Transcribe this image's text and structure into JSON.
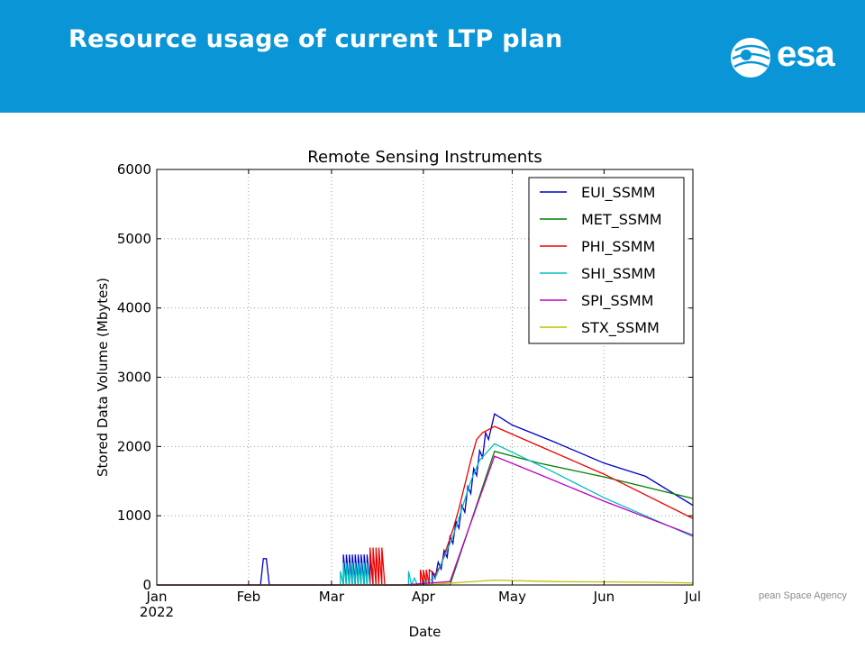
{
  "header": {
    "title": "Resource usage of current LTP plan",
    "logo_text": "esa",
    "brand_color": "#0a96d6"
  },
  "footer": {
    "agency_text": "pean Space Agency"
  },
  "chart_data": {
    "type": "line",
    "title": "Remote Sensing Instruments",
    "xlabel": "Date",
    "ylabel": "Stored Data Volume (Mbytes)",
    "xlim": [
      "2022-01-01",
      "2022-07-01"
    ],
    "ylim": [
      0,
      6000
    ],
    "grid": true,
    "legend_position": "top-right",
    "x_ticks": [
      {
        "date": "2022-01-01",
        "label": "Jan",
        "sublabel": "2022"
      },
      {
        "date": "2022-02-01",
        "label": "Feb",
        "sublabel": ""
      },
      {
        "date": "2022-03-01",
        "label": "Mar",
        "sublabel": ""
      },
      {
        "date": "2022-04-01",
        "label": "Apr",
        "sublabel": ""
      },
      {
        "date": "2022-05-01",
        "label": "May",
        "sublabel": ""
      },
      {
        "date": "2022-06-01",
        "label": "Jun",
        "sublabel": ""
      },
      {
        "date": "2022-07-01",
        "label": "Jul",
        "sublabel": ""
      }
    ],
    "y_ticks": [
      0,
      1000,
      2000,
      3000,
      4000,
      5000,
      6000
    ],
    "series": [
      {
        "name": "EUI_SSMM",
        "color": "#0000cc",
        "points": [
          [
            "2022-01-01",
            0
          ],
          [
            "2022-02-05",
            0
          ],
          [
            "2022-02-06",
            380
          ],
          [
            "2022-02-07",
            380
          ],
          [
            "2022-02-08",
            0
          ],
          [
            "2022-03-05",
            0
          ],
          [
            "2022-03-05",
            440
          ],
          [
            "2022-03-06",
            0
          ],
          [
            "2022-03-06",
            440
          ],
          [
            "2022-03-07",
            0
          ],
          [
            "2022-03-07",
            440
          ],
          [
            "2022-03-08",
            0
          ],
          [
            "2022-03-08",
            440
          ],
          [
            "2022-03-09",
            0
          ],
          [
            "2022-03-09",
            440
          ],
          [
            "2022-03-10",
            0
          ],
          [
            "2022-03-10",
            440
          ],
          [
            "2022-03-11",
            0
          ],
          [
            "2022-03-11",
            440
          ],
          [
            "2022-03-12",
            0
          ],
          [
            "2022-03-12",
            440
          ],
          [
            "2022-03-13",
            0
          ],
          [
            "2022-03-13",
            440
          ],
          [
            "2022-03-14",
            0
          ],
          [
            "2022-03-14",
            440
          ],
          [
            "2022-03-15",
            0
          ],
          [
            "2022-04-04",
            0
          ],
          [
            "2022-04-04",
            200
          ],
          [
            "2022-04-05",
            100
          ],
          [
            "2022-04-06",
            330
          ],
          [
            "2022-04-07",
            230
          ],
          [
            "2022-04-08",
            500
          ],
          [
            "2022-04-09",
            400
          ],
          [
            "2022-04-10",
            700
          ],
          [
            "2022-04-11",
            600
          ],
          [
            "2022-04-12",
            920
          ],
          [
            "2022-04-13",
            820
          ],
          [
            "2022-04-14",
            1150
          ],
          [
            "2022-04-15",
            1050
          ],
          [
            "2022-04-16",
            1420
          ],
          [
            "2022-04-17",
            1320
          ],
          [
            "2022-04-18",
            1680
          ],
          [
            "2022-04-19",
            1580
          ],
          [
            "2022-04-20",
            1940
          ],
          [
            "2022-04-21",
            1840
          ],
          [
            "2022-04-22",
            2200
          ],
          [
            "2022-04-23",
            2100
          ],
          [
            "2022-04-25",
            2470
          ],
          [
            "2022-05-01",
            2310
          ],
          [
            "2022-05-15",
            2070
          ],
          [
            "2022-06-01",
            1760
          ],
          [
            "2022-06-15",
            1570
          ],
          [
            "2022-07-01",
            1150
          ]
        ]
      },
      {
        "name": "MET_SSMM",
        "color": "#008000",
        "points": [
          [
            "2022-01-01",
            0
          ],
          [
            "2022-04-10",
            0
          ],
          [
            "2022-04-25",
            1930
          ],
          [
            "2022-05-10",
            1760
          ],
          [
            "2022-06-01",
            1560
          ],
          [
            "2022-07-01",
            1250
          ]
        ]
      },
      {
        "name": "PHI_SSMM",
        "color": "#ee0000",
        "points": [
          [
            "2022-01-01",
            0
          ],
          [
            "2022-03-14",
            0
          ],
          [
            "2022-03-14",
            540
          ],
          [
            "2022-03-15",
            0
          ],
          [
            "2022-03-15",
            540
          ],
          [
            "2022-03-16",
            0
          ],
          [
            "2022-03-16",
            540
          ],
          [
            "2022-03-17",
            0
          ],
          [
            "2022-03-17",
            540
          ],
          [
            "2022-03-18",
            0
          ],
          [
            "2022-03-18",
            540
          ],
          [
            "2022-03-19",
            0
          ],
          [
            "2022-03-31",
            0
          ],
          [
            "2022-03-31",
            220
          ],
          [
            "2022-04-01",
            0
          ],
          [
            "2022-04-01",
            220
          ],
          [
            "2022-04-02",
            0
          ],
          [
            "2022-04-02",
            220
          ],
          [
            "2022-04-03",
            0
          ],
          [
            "2022-04-03",
            220
          ],
          [
            "2022-04-05",
            150
          ],
          [
            "2022-04-07",
            300
          ],
          [
            "2022-04-09",
            550
          ],
          [
            "2022-04-11",
            800
          ],
          [
            "2022-04-13",
            1100
          ],
          [
            "2022-04-15",
            1450
          ],
          [
            "2022-04-17",
            1800
          ],
          [
            "2022-04-19",
            2100
          ],
          [
            "2022-04-21",
            2200
          ],
          [
            "2022-04-25",
            2290
          ],
          [
            "2022-05-10",
            2010
          ],
          [
            "2022-06-01",
            1600
          ],
          [
            "2022-07-01",
            960
          ]
        ]
      },
      {
        "name": "SHI_SSMM",
        "color": "#00bfbf",
        "points": [
          [
            "2022-01-01",
            0
          ],
          [
            "2022-03-04",
            0
          ],
          [
            "2022-03-04",
            200
          ],
          [
            "2022-03-05",
            0
          ],
          [
            "2022-03-05",
            320
          ],
          [
            "2022-03-06",
            0
          ],
          [
            "2022-03-06",
            320
          ],
          [
            "2022-03-07",
            0
          ],
          [
            "2022-03-07",
            320
          ],
          [
            "2022-03-08",
            0
          ],
          [
            "2022-03-08",
            320
          ],
          [
            "2022-03-09",
            0
          ],
          [
            "2022-03-09",
            320
          ],
          [
            "2022-03-10",
            0
          ],
          [
            "2022-03-10",
            320
          ],
          [
            "2022-03-11",
            0
          ],
          [
            "2022-03-11",
            320
          ],
          [
            "2022-03-12",
            0
          ],
          [
            "2022-03-12",
            320
          ],
          [
            "2022-03-13",
            0
          ],
          [
            "2022-03-13",
            320
          ],
          [
            "2022-03-14",
            0
          ],
          [
            "2022-03-27",
            0
          ],
          [
            "2022-03-27",
            200
          ],
          [
            "2022-03-28",
            0
          ],
          [
            "2022-03-29",
            100
          ],
          [
            "2022-03-30",
            0
          ],
          [
            "2022-04-05",
            100
          ],
          [
            "2022-04-08",
            400
          ],
          [
            "2022-04-11",
            700
          ],
          [
            "2022-04-14",
            1100
          ],
          [
            "2022-04-17",
            1500
          ],
          [
            "2022-04-20",
            1800
          ],
          [
            "2022-04-25",
            2040
          ],
          [
            "2022-05-15",
            1630
          ],
          [
            "2022-06-01",
            1260
          ],
          [
            "2022-07-01",
            700
          ]
        ]
      },
      {
        "name": "SPI_SSMM",
        "color": "#bf00bf",
        "points": [
          [
            "2022-01-01",
            0
          ],
          [
            "2022-03-25",
            0
          ],
          [
            "2022-04-10",
            50
          ],
          [
            "2022-04-25",
            1860
          ],
          [
            "2022-05-10",
            1600
          ],
          [
            "2022-06-01",
            1210
          ],
          [
            "2022-07-01",
            720
          ]
        ]
      },
      {
        "name": "STX_SSMM",
        "color": "#bfbf00",
        "points": [
          [
            "2022-01-01",
            0
          ],
          [
            "2022-04-01",
            0
          ],
          [
            "2022-04-25",
            70
          ],
          [
            "2022-05-15",
            50
          ],
          [
            "2022-06-15",
            40
          ],
          [
            "2022-07-01",
            30
          ]
        ]
      }
    ]
  }
}
